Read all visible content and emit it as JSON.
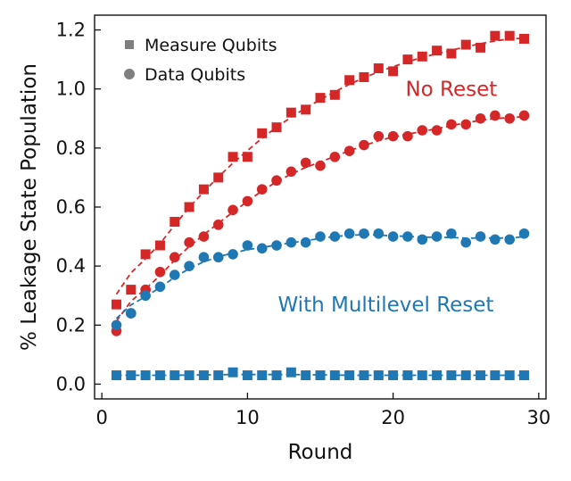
{
  "chart_data": {
    "type": "scatter",
    "title": "",
    "xlabel": "Round",
    "ylabel": "% Leakage State Population",
    "xlim": [
      -0.5,
      30.5
    ],
    "ylim": [
      -0.05,
      1.25
    ],
    "xticks": [
      0,
      10,
      20,
      30
    ],
    "xtick_labels": [
      "0",
      "10",
      "20",
      "30"
    ],
    "yticks": [
      0.0,
      0.2,
      0.4,
      0.6,
      0.8,
      1.0,
      1.2
    ],
    "ytick_labels": [
      "0.0",
      "0.2",
      "0.4",
      "0.6",
      "0.8",
      "1.0",
      "1.2"
    ],
    "grid": false,
    "legend": {
      "position": "top-left",
      "entries": [
        {
          "label": "Measure Qubits",
          "marker": "square",
          "color": "#7f7f7f"
        },
        {
          "label": "Data Qubits",
          "marker": "circle",
          "color": "#7f7f7f"
        }
      ]
    },
    "annotations": [
      {
        "text": "No Reset",
        "color": "#d62728",
        "x": 24,
        "y": 1.0
      },
      {
        "text": "With Multilevel Reset",
        "color": "#1f77b4",
        "x": 19.5,
        "y": 0.27
      }
    ],
    "series": [
      {
        "name": "No Reset - Measure Qubits",
        "marker": "square",
        "color": "#d62728",
        "x": [
          1,
          2,
          3,
          4,
          5,
          6,
          7,
          8,
          9,
          10,
          11,
          12,
          13,
          14,
          15,
          16,
          17,
          18,
          19,
          20,
          21,
          22,
          23,
          24,
          25,
          26,
          27,
          28,
          29
        ],
        "y": [
          0.27,
          0.32,
          0.44,
          0.47,
          0.55,
          0.6,
          0.66,
          0.7,
          0.77,
          0.77,
          0.85,
          0.87,
          0.92,
          0.93,
          0.97,
          0.98,
          1.03,
          1.04,
          1.07,
          1.06,
          1.1,
          1.11,
          1.13,
          1.12,
          1.15,
          1.14,
          1.18,
          1.18,
          1.17
        ],
        "fit": true
      },
      {
        "name": "No Reset - Data Qubits",
        "marker": "circle",
        "color": "#d62728",
        "x": [
          1,
          2,
          3,
          4,
          5,
          6,
          7,
          8,
          9,
          10,
          11,
          12,
          13,
          14,
          15,
          16,
          17,
          18,
          19,
          20,
          21,
          22,
          23,
          24,
          25,
          26,
          27,
          28,
          29
        ],
        "y": [
          0.18,
          0.24,
          0.32,
          0.38,
          0.43,
          0.48,
          0.5,
          0.54,
          0.59,
          0.62,
          0.66,
          0.69,
          0.72,
          0.75,
          0.74,
          0.77,
          0.79,
          0.81,
          0.84,
          0.84,
          0.84,
          0.86,
          0.86,
          0.88,
          0.88,
          0.9,
          0.91,
          0.9,
          0.91
        ],
        "fit": true
      },
      {
        "name": "With Multilevel Reset - Data Qubits",
        "marker": "circle",
        "color": "#1f77b4",
        "x": [
          1,
          2,
          3,
          4,
          5,
          6,
          7,
          8,
          9,
          10,
          11,
          12,
          13,
          14,
          15,
          16,
          17,
          18,
          19,
          20,
          21,
          22,
          23,
          24,
          25,
          26,
          27,
          28,
          29
        ],
        "y": [
          0.2,
          0.24,
          0.3,
          0.33,
          0.37,
          0.4,
          0.43,
          0.43,
          0.44,
          0.47,
          0.46,
          0.47,
          0.48,
          0.48,
          0.5,
          0.5,
          0.51,
          0.51,
          0.51,
          0.5,
          0.5,
          0.49,
          0.5,
          0.51,
          0.48,
          0.5,
          0.49,
          0.49,
          0.51
        ],
        "fit": true
      },
      {
        "name": "With Multilevel Reset - Measure Qubits",
        "marker": "square",
        "color": "#1f77b4",
        "x": [
          1,
          2,
          3,
          4,
          5,
          6,
          7,
          8,
          9,
          10,
          11,
          12,
          13,
          14,
          15,
          16,
          17,
          18,
          19,
          20,
          21,
          22,
          23,
          24,
          25,
          26,
          27,
          28,
          29
        ],
        "y": [
          0.03,
          0.03,
          0.03,
          0.03,
          0.03,
          0.03,
          0.03,
          0.03,
          0.04,
          0.03,
          0.03,
          0.03,
          0.04,
          0.03,
          0.03,
          0.03,
          0.03,
          0.03,
          0.03,
          0.03,
          0.03,
          0.03,
          0.03,
          0.03,
          0.03,
          0.03,
          0.03,
          0.03,
          0.03
        ],
        "fit": true
      }
    ]
  }
}
